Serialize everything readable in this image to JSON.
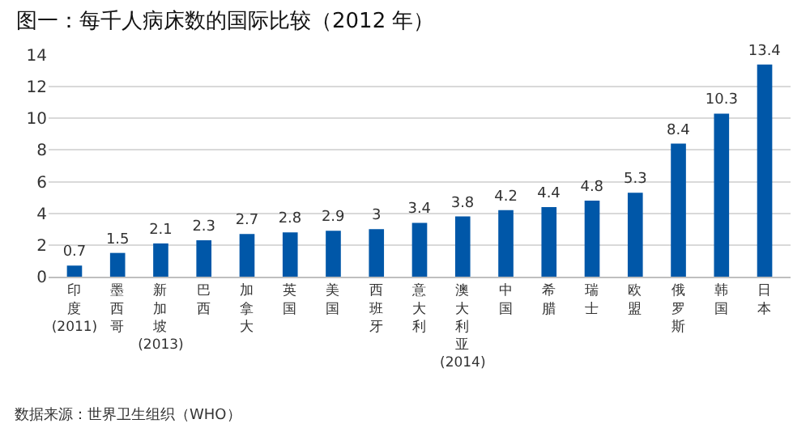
{
  "chart_data": {
    "type": "bar",
    "title": "图一：每千人病床数的国际比较（2012 年）",
    "categories": [
      "印度 (2011)",
      "墨西哥",
      "新加坡 (2013)",
      "巴西",
      "加拿大",
      "英国",
      "美国",
      "西班牙",
      "意大利",
      "澳大利亚 (2014)",
      "中国",
      "希腊",
      "瑞士",
      "欧盟",
      "俄罗斯",
      "韩国",
      "日本"
    ],
    "values": [
      0.7,
      1.5,
      2.1,
      2.3,
      2.7,
      2.8,
      2.9,
      3,
      3.4,
      3.8,
      4.2,
      4.4,
      4.8,
      5.3,
      8.4,
      10.3,
      13.4
    ],
    "color": "#0057a8",
    "data_labels": true,
    "ylim": [
      0,
      14
    ],
    "yticks": [
      0,
      2,
      4,
      6,
      8,
      10,
      12,
      14
    ],
    "grid": "y",
    "annotations": [
      "数据来源：世界卫生组织（WHO）"
    ]
  }
}
